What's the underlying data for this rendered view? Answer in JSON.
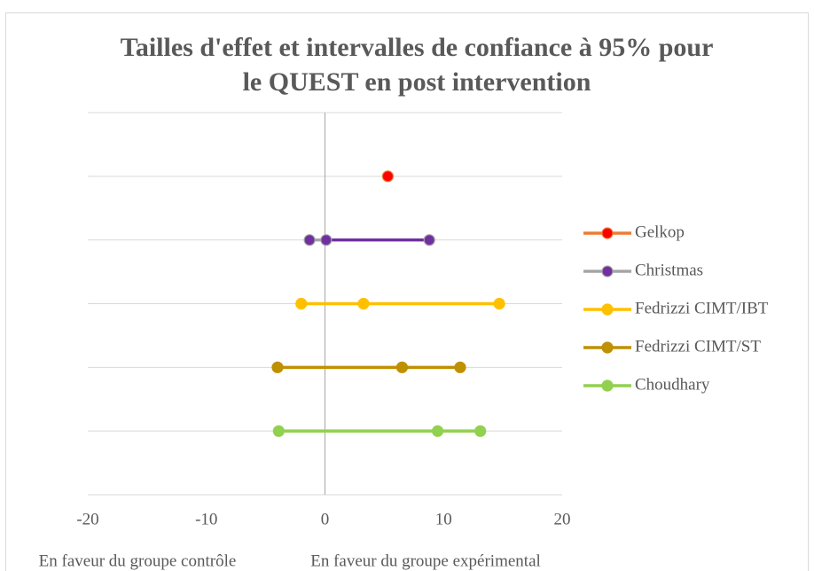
{
  "chart_data": {
    "type": "scatter",
    "title": [
      "Tailles d'effet et intervalles de confiance à 95% pour",
      "le QUEST en post intervention"
    ],
    "annotations": [
      "En faveur du groupe contrôle",
      "En faveur du groupe expérimental"
    ],
    "xlim": [
      -20,
      20
    ],
    "xticks": [
      -20,
      -10,
      0,
      10,
      20
    ],
    "ylim": [
      0,
      6
    ],
    "yticks": [
      0,
      1,
      2,
      3,
      4,
      5,
      6
    ],
    "y_tick_labels": false,
    "grid": true,
    "legend": "right",
    "series": [
      {
        "name": "Gelkop",
        "color": "#ed7d31",
        "marker_color": "#ff0000",
        "x": [
          5.3
        ],
        "values": [
          5
        ]
      },
      {
        "name": "Christmas",
        "color": "#a5a5a5",
        "marker_color": "#7030a0",
        "segment_colors": [
          "#a5a5a5",
          "#7030a0"
        ],
        "x": [
          -1.3,
          0.1,
          8.8
        ],
        "values": [
          4,
          4,
          4
        ]
      },
      {
        "name": "Fedrizzi CIMT/IBT",
        "color": "#ffc000",
        "marker_color": "#ffc000",
        "x": [
          -2.0,
          3.25,
          14.7
        ],
        "values": [
          3,
          3,
          3
        ]
      },
      {
        "name": "Fedrizzi CIMT/ST",
        "color": "#bf9000",
        "marker_color": "#bf9000",
        "x": [
          -4.0,
          6.5,
          11.4
        ],
        "values": [
          2,
          2,
          2
        ]
      },
      {
        "name": "Choudhary",
        "color": "#92d050",
        "marker_color": "#92d050",
        "x": [
          -3.9,
          9.5,
          13.1
        ],
        "values": [
          1,
          1,
          1
        ]
      }
    ]
  }
}
